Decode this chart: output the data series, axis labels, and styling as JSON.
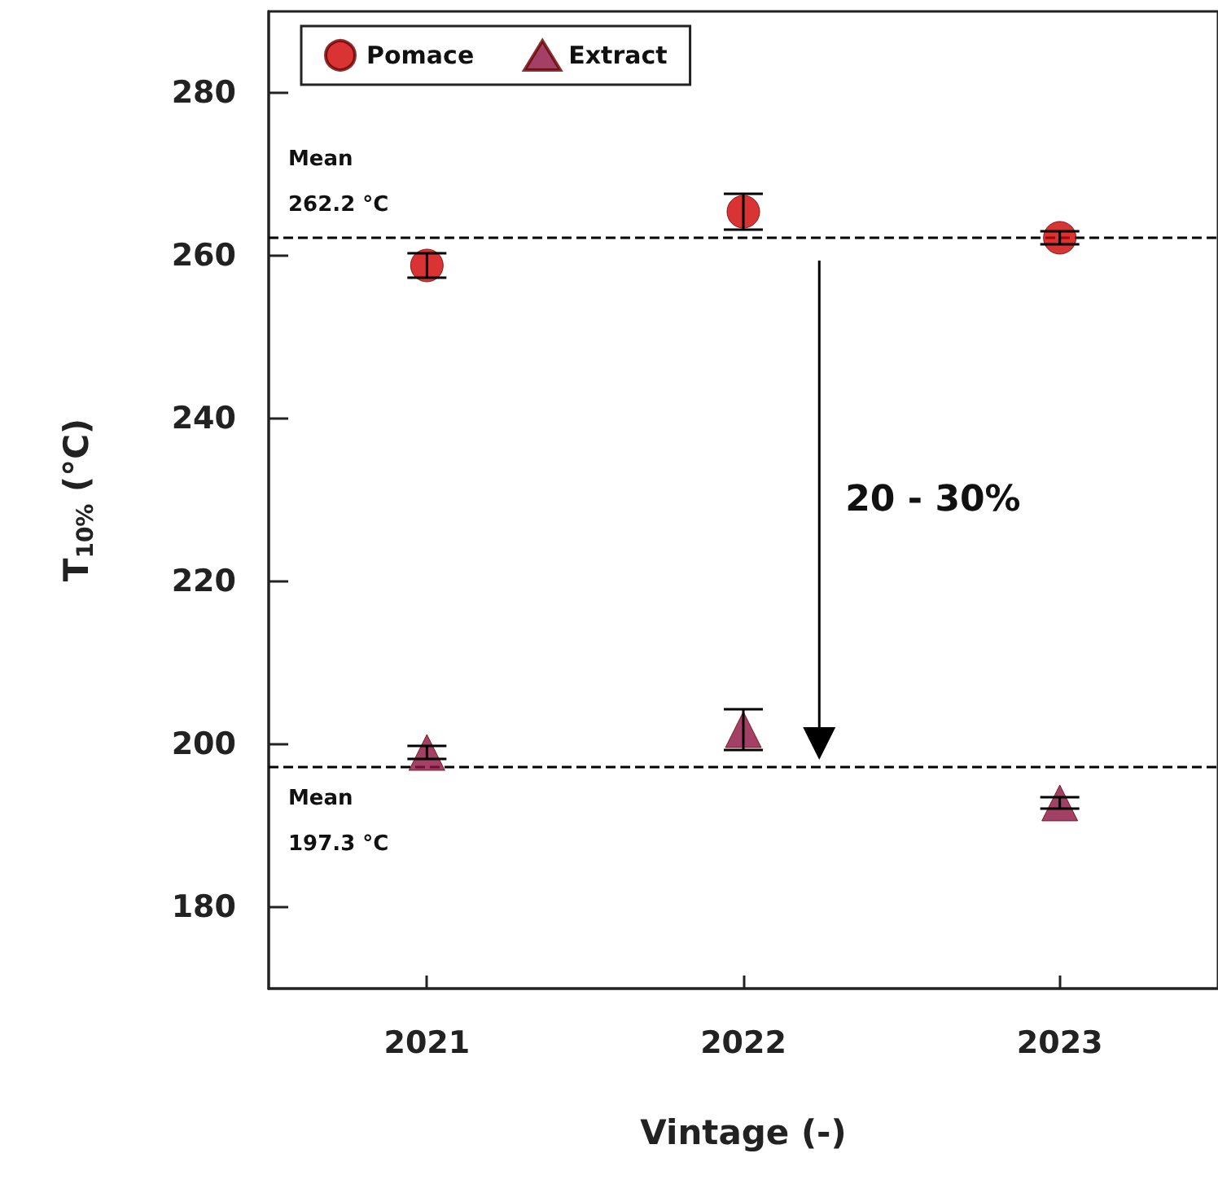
{
  "chart_data": {
    "type": "scatter",
    "xlabel": "Vintage (-)",
    "ylabel": "T$_{10%}$ (°C)",
    "categories": [
      "2021",
      "2022",
      "2023"
    ],
    "series": [
      {
        "name": "Pomace",
        "color": "#d00000",
        "marker": "circle",
        "values": [
          258.8,
          265.4,
          262.2
        ],
        "errors": [
          1.5,
          2.2,
          0.8
        ]
      },
      {
        "name": "Extract",
        "color": "#8b1040",
        "marker": "triangle",
        "values": [
          199.0,
          201.8,
          192.8
        ],
        "errors": [
          0.8,
          2.5,
          0.7
        ]
      }
    ],
    "ylim": [
      170,
      290
    ],
    "yticks": [
      180,
      200,
      220,
      240,
      260,
      280
    ],
    "ref_lines": [
      {
        "axis": "y",
        "value": 262.2,
        "label": "Mean\n262.2 °C",
        "line_style": "dashed"
      },
      {
        "axis": "y",
        "value": 197.3,
        "label": "Mean\n197.3 °C",
        "line_style": "dashed"
      }
    ],
    "annotations": [
      "20 - 30%"
    ],
    "grid": false,
    "legend": "top left"
  }
}
